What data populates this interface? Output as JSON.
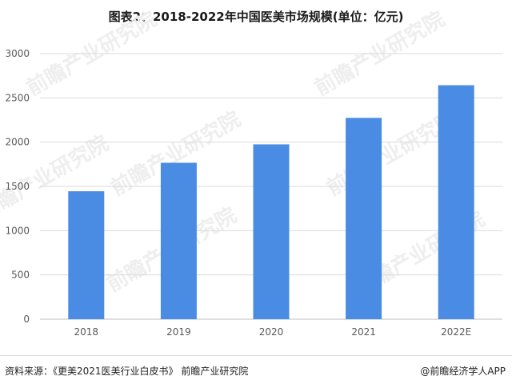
{
  "header": {
    "title": "图表2：2018-2022年中国医美市场规模(单位：亿元)"
  },
  "chart_data": {
    "type": "bar",
    "categories": [
      "2018",
      "2019",
      "2020",
      "2021",
      "2022E"
    ],
    "values": [
      1445,
      1767,
      1975,
      2274,
      2643
    ],
    "ylim": [
      0,
      3000
    ],
    "yticks": [
      0,
      500,
      1000,
      1500,
      2000,
      2500,
      3000
    ],
    "grid": true,
    "bar_color": "#4A8BE3",
    "grid_color": "#d9d9d9"
  },
  "watermark": {
    "text": "前瞻产业研究院"
  },
  "footer": {
    "source": "资料来源：《更美2021医美行业白皮书》 前瞻产业研究院",
    "credit": "@前瞻经济学人APP"
  }
}
